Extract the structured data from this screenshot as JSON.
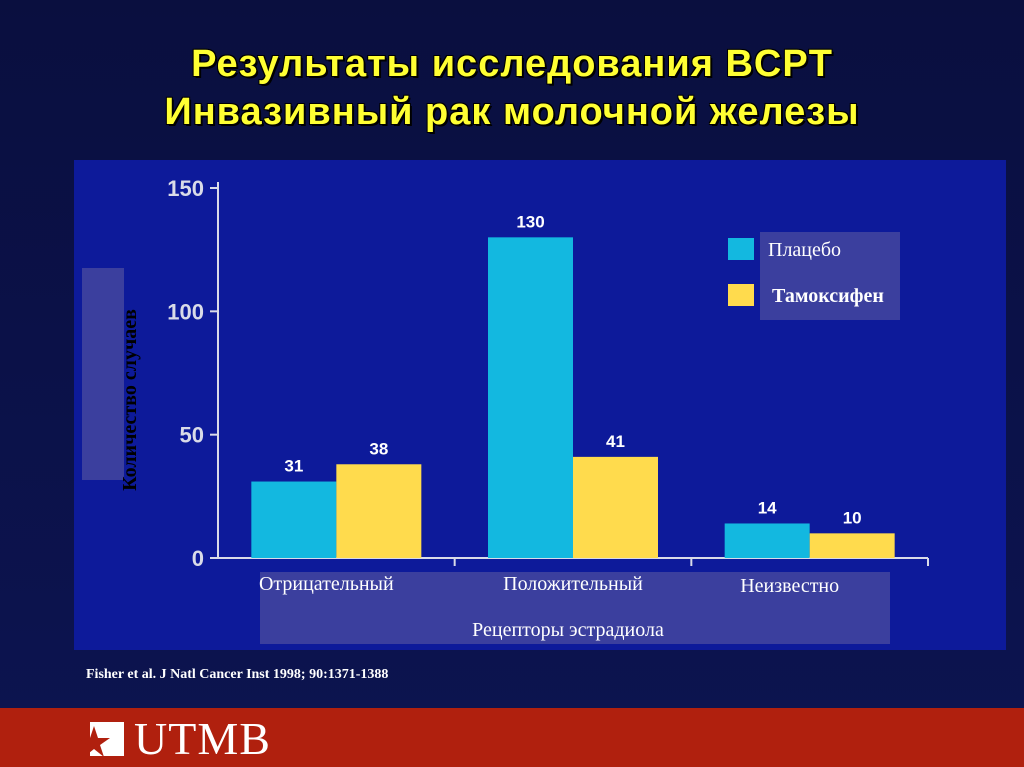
{
  "slide": {
    "title_line1": "Результаты исследования BCPT",
    "title_line2": "Инвазивный рак молочной железы",
    "citation": "Fisher et al. J Natl Cancer Inst 1998; 90:1371-1388"
  },
  "footer": {
    "logo_text": "UTMB"
  },
  "colors": {
    "background": "#0a0f3f",
    "panel": "#0d1a9a",
    "placebo": "#13b8e0",
    "tamoxifen": "#ffdb4d",
    "title": "#ffff33",
    "footer": "#b0200e"
  },
  "chart_data": {
    "type": "bar",
    "categories": [
      "Отрицательный",
      "Положительный",
      "Неизвестно"
    ],
    "series": [
      {
        "name": "Плацебо",
        "values": [
          31,
          130,
          14
        ],
        "color": "#13b8e0"
      },
      {
        "name": "Тамоксифен",
        "values": [
          38,
          41,
          10
        ],
        "color": "#ffdb4d"
      }
    ],
    "ylabel": "Количество случаев",
    "xlabel": "Рецепторы эстрадиола",
    "ylim": [
      0,
      150
    ],
    "yticks": [
      0,
      50,
      100,
      150
    ],
    "legend": "top-right",
    "grid": false
  }
}
